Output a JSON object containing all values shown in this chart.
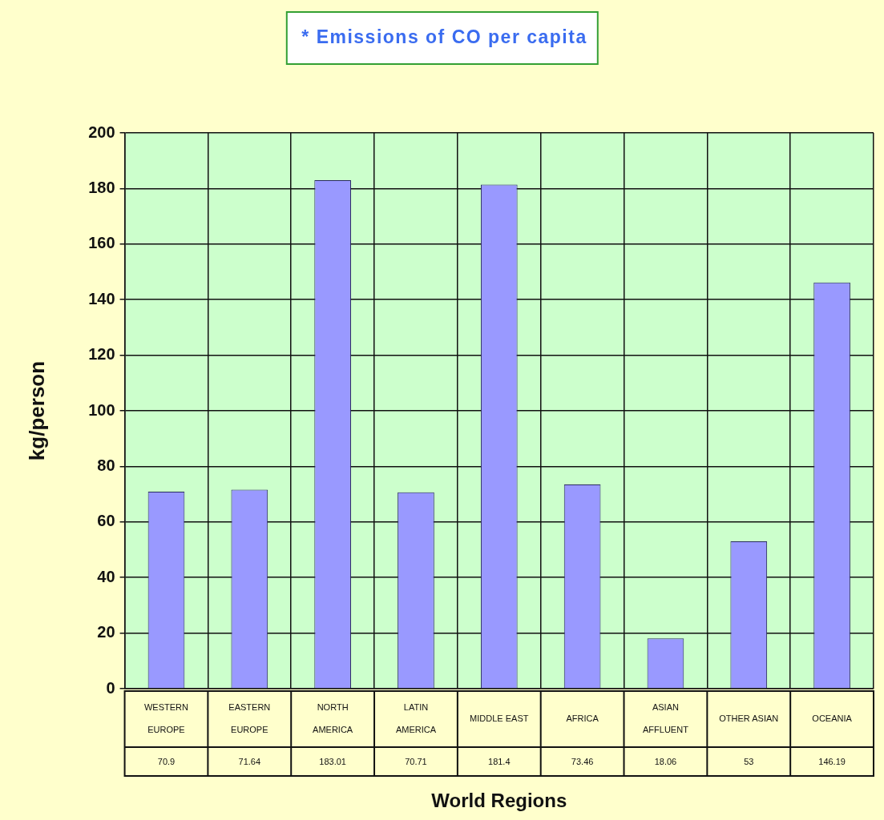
{
  "chart_data": {
    "type": "bar",
    "title": "* Emissions of CO per capita",
    "xlabel": "World Regions",
    "ylabel": "kg/person",
    "categories": [
      "WESTERN EUROPE",
      "EASTERN EUROPE",
      "NORTH AMERICA",
      "LATIN AMERICA",
      "MIDDLE EAST",
      "AFRICA",
      "ASIAN AFFLUENT",
      "OTHER ASIAN",
      "OCEANIA"
    ],
    "values": [
      70.9,
      71.64,
      183.01,
      70.71,
      181.4,
      73.46,
      18.06,
      53,
      146.19
    ],
    "color": "#9999ff",
    "ylim": [
      0,
      200
    ],
    "yticks": [
      0,
      20,
      40,
      60,
      80,
      100,
      120,
      140,
      160,
      180,
      200
    ],
    "grid": true,
    "legend": false,
    "data_labels": true
  }
}
